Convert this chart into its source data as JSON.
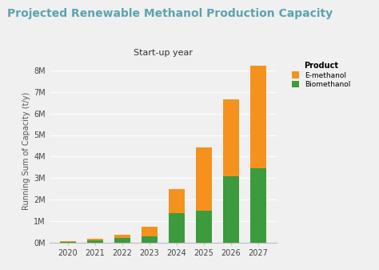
{
  "title": "Projected Renewable Methanol Production Capacity",
  "subtitle": "Start-up year",
  "ylabel": "Running Sum of Capacity (t/y)",
  "years": [
    2020,
    2021,
    2022,
    2023,
    2024,
    2025,
    2026,
    2027
  ],
  "biomethanol": [
    50000,
    130000,
    220000,
    320000,
    1400000,
    1480000,
    3100000,
    3450000
  ],
  "e_methanol": [
    20000,
    60000,
    150000,
    420000,
    1100000,
    2950000,
    3550000,
    4750000
  ],
  "color_emethanol": "#F5921E",
  "color_biomethanol": "#3C9B3C",
  "background_color": "#F0F0F0",
  "title_color": "#5BA4B0",
  "subtitle_fontsize": 8,
  "title_fontsize": 10,
  "ylabel_fontsize": 7,
  "tick_fontsize": 7,
  "ylim": [
    0,
    8500000
  ],
  "yticks": [
    0,
    1000000,
    2000000,
    3000000,
    4000000,
    5000000,
    6000000,
    7000000,
    8000000
  ],
  "ytick_labels": [
    "0M",
    "1M",
    "2M",
    "3M",
    "4M",
    "5M",
    "6M",
    "7M",
    "8M"
  ],
  "legend_title": "Product",
  "legend_labels": [
    "E-methanol",
    "Biomethanol"
  ],
  "legend_colors": [
    "#F5921E",
    "#3C9B3C"
  ],
  "grid_color": "#FFFFFF",
  "bar_width": 0.6
}
